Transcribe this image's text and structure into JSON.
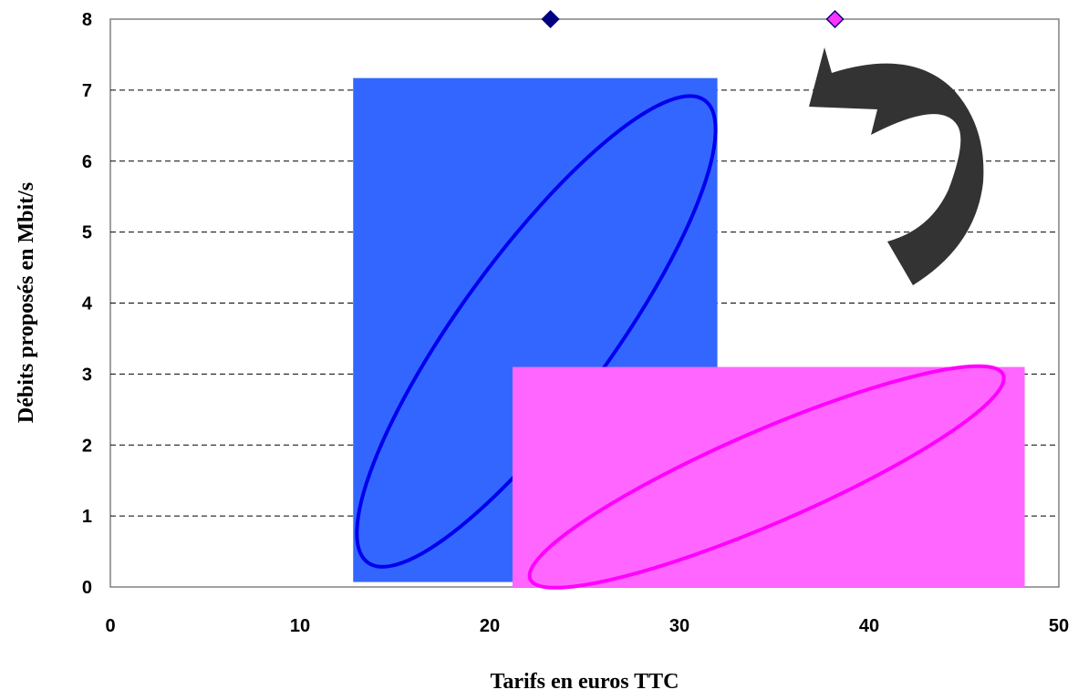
{
  "chart_data": {
    "type": "scatter",
    "title": "",
    "xlabel": "Tarifs en euros TTC",
    "ylabel": "Débits proposés en Mbit/s",
    "xlim": [
      0,
      50
    ],
    "ylim": [
      0,
      8
    ],
    "x_ticks": [
      0,
      10,
      20,
      30,
      40,
      50
    ],
    "y_ticks": [
      0,
      1,
      2,
      3,
      4,
      5,
      6,
      7,
      8
    ],
    "grid": "horizontal dashed",
    "series": [
      {
        "color": "#000080",
        "marker": "diamond",
        "points": [
          {
            "x": 23.2,
            "y": 8
          }
        ]
      },
      {
        "color": "#ff33ff",
        "marker": "diamond",
        "points": [
          {
            "x": 38.2,
            "y": 8
          }
        ]
      }
    ],
    "annotations": [
      {
        "type": "rectangle",
        "fill": "#3366ff",
        "x": [
          12.8,
          32.0
        ],
        "y": [
          0.07,
          7.17
        ]
      },
      {
        "type": "ellipse",
        "stroke": "#0000ee",
        "x": [
          12.9,
          32.0
        ],
        "y": [
          0.1,
          7.1
        ]
      },
      {
        "type": "rectangle",
        "fill": "#ff66ff",
        "x": [
          21.2,
          48.2
        ],
        "y": [
          0.0,
          3.1
        ]
      },
      {
        "type": "ellipse",
        "stroke": "#ff00ff",
        "x": [
          21.2,
          48.0
        ],
        "y": [
          0.0,
          3.1
        ]
      },
      {
        "type": "curved-arrow",
        "fill": "#333333",
        "direction": "up-left"
      }
    ]
  }
}
